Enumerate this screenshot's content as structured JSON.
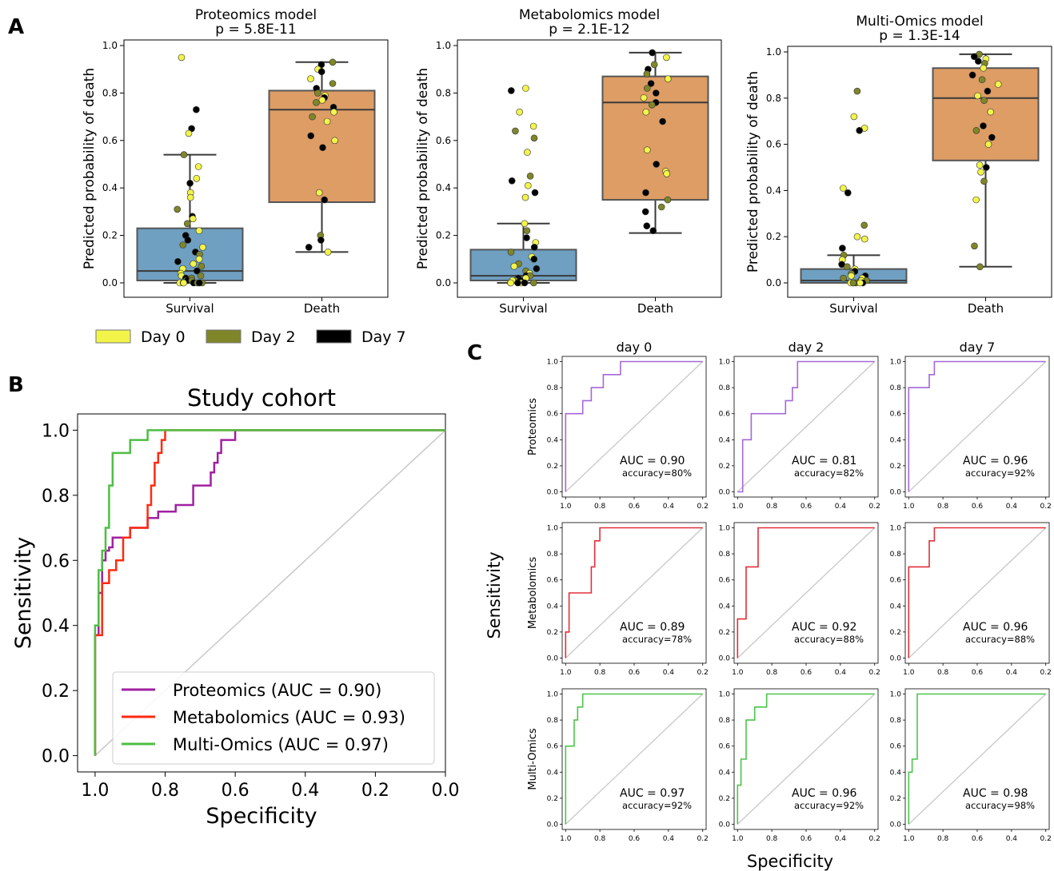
{
  "panel_labels": {
    "a": "A",
    "b": "B",
    "c": "C"
  },
  "legend_days": [
    {
      "label": "Day 0",
      "color": "#f2f44a"
    },
    {
      "label": "Day 2",
      "color": "#7f862a"
    },
    {
      "label": "Day 7",
      "color": "#000000"
    }
  ],
  "colors": {
    "box_survival": "#6f9fc1",
    "box_death": "#dd9d65",
    "proteomics": "#a468d8",
    "metabolomics": "#e0303a",
    "multiomics": "#4cc44a",
    "cohort_proteomics": "#a020a0",
    "cohort_metabolomics": "#ff2a10",
    "cohort_multiomics": "#4dbe43",
    "diagonal": "#c8c8c8"
  },
  "chart_data": [
    {
      "type": "box",
      "panel": "A",
      "title": "Proteomics model",
      "subtitle": "p = 5.8E-11",
      "ylabel": "Predicted probability of death",
      "categories": [
        "Survival",
        "Death"
      ],
      "ylim": [
        0,
        1
      ],
      "yticks": [
        "0.0",
        "0.2",
        "0.4",
        "0.6",
        "0.8",
        "1.0"
      ],
      "boxes": [
        {
          "q1": 0.01,
          "median": 0.05,
          "q3": 0.23,
          "whisker_low": 0.0,
          "whisker_high": 0.54
        },
        {
          "q1": 0.34,
          "median": 0.73,
          "q3": 0.81,
          "whisker_low": 0.13,
          "whisker_high": 0.93
        }
      ],
      "points": [
        [
          0.95,
          0.73,
          0.65,
          0.63,
          0.54,
          0.49,
          0.44,
          0.42,
          0.38,
          0.36,
          0.31,
          0.28,
          0.27,
          0.25,
          0.22,
          0.2,
          0.18,
          0.16,
          0.15,
          0.13,
          0.12,
          0.1,
          0.09,
          0.08,
          0.07,
          0.06,
          0.05,
          0.04,
          0.03,
          0.03,
          0.02,
          0.02,
          0.01,
          0.01,
          0.01,
          0.0,
          0.0,
          0.0,
          0.0,
          0.0,
          0.0,
          0.0
        ],
        [
          0.93,
          0.92,
          0.9,
          0.89,
          0.86,
          0.84,
          0.82,
          0.8,
          0.79,
          0.78,
          0.77,
          0.76,
          0.74,
          0.72,
          0.7,
          0.68,
          0.62,
          0.6,
          0.57,
          0.38,
          0.35,
          0.2,
          0.18,
          0.15,
          0.13
        ]
      ],
      "days": [
        [
          0,
          2,
          2,
          0,
          1,
          0,
          0,
          2,
          0,
          0,
          1,
          2,
          0,
          1,
          0,
          2,
          2,
          1,
          0,
          2,
          1,
          0,
          2,
          0,
          1,
          0,
          2,
          0,
          1,
          0,
          2,
          1,
          0,
          2,
          1,
          0,
          2,
          1,
          2,
          0,
          1,
          2
        ],
        [
          1,
          2,
          0,
          2,
          0,
          1,
          2,
          1,
          0,
          2,
          0,
          1,
          2,
          0,
          1,
          0,
          2,
          0,
          2,
          0,
          2,
          1,
          2,
          2,
          0
        ]
      ]
    },
    {
      "type": "box",
      "panel": "A",
      "title": "Metabolomics model",
      "subtitle": "p = 2.1E-12",
      "ylabel": "Predicted probability of death",
      "categories": [
        "Survival",
        "Death"
      ],
      "ylim": [
        0,
        1
      ],
      "yticks": [
        "0.0",
        "0.2",
        "0.4",
        "0.6",
        "0.8",
        "1.0"
      ],
      "boxes": [
        {
          "q1": 0.01,
          "median": 0.03,
          "q3": 0.14,
          "whisker_low": 0.0,
          "whisker_high": 0.25
        },
        {
          "q1": 0.35,
          "median": 0.76,
          "q3": 0.87,
          "whisker_low": 0.21,
          "whisker_high": 0.97
        }
      ],
      "points": [
        [
          0.82,
          0.81,
          0.72,
          0.66,
          0.64,
          0.61,
          0.55,
          0.45,
          0.43,
          0.41,
          0.38,
          0.36,
          0.25,
          0.22,
          0.19,
          0.17,
          0.15,
          0.13,
          0.11,
          0.1,
          0.08,
          0.07,
          0.06,
          0.05,
          0.04,
          0.03,
          0.03,
          0.02,
          0.02,
          0.01,
          0.01,
          0.01,
          0.0,
          0.0,
          0.0,
          0.0,
          0.0,
          0.0
        ],
        [
          0.97,
          0.95,
          0.92,
          0.9,
          0.88,
          0.86,
          0.84,
          0.82,
          0.8,
          0.78,
          0.76,
          0.75,
          0.72,
          0.68,
          0.56,
          0.5,
          0.47,
          0.46,
          0.38,
          0.35,
          0.32,
          0.3,
          0.24,
          0.22
        ]
      ],
      "days": [
        [
          0,
          2,
          0,
          0,
          1,
          1,
          0,
          1,
          2,
          0,
          2,
          0,
          0,
          1,
          2,
          0,
          2,
          1,
          0,
          2,
          1,
          0,
          2,
          1,
          0,
          2,
          1,
          0,
          2,
          1,
          0,
          2,
          1,
          0,
          2,
          1,
          0,
          2
        ],
        [
          2,
          0,
          1,
          2,
          1,
          0,
          2,
          1,
          2,
          0,
          2,
          1,
          0,
          2,
          0,
          2,
          0,
          0,
          2,
          1,
          1,
          2,
          2,
          2
        ]
      ]
    },
    {
      "type": "box",
      "panel": "A",
      "title": "Multi-Omics model",
      "subtitle": "p = 1.3E-14",
      "ylabel": "Predicted probability of death",
      "categories": [
        "Survival",
        "Death"
      ],
      "ylim": [
        0,
        1
      ],
      "yticks": [
        "0.0",
        "0.2",
        "0.4",
        "0.6",
        "0.8",
        "1.0"
      ],
      "boxes": [
        {
          "q1": 0.0,
          "median": 0.01,
          "q3": 0.06,
          "whisker_low": 0.0,
          "whisker_high": 0.12
        },
        {
          "q1": 0.53,
          "median": 0.8,
          "q3": 0.93,
          "whisker_low": 0.07,
          "whisker_high": 0.99
        }
      ],
      "points": [
        [
          0.83,
          0.72,
          0.67,
          0.66,
          0.41,
          0.39,
          0.25,
          0.2,
          0.19,
          0.15,
          0.12,
          0.1,
          0.08,
          0.07,
          0.06,
          0.05,
          0.04,
          0.03,
          0.03,
          0.02,
          0.02,
          0.01,
          0.01,
          0.01,
          0.0,
          0.0,
          0.0,
          0.0,
          0.0,
          0.0
        ],
        [
          0.99,
          0.98,
          0.97,
          0.96,
          0.95,
          0.93,
          0.9,
          0.88,
          0.86,
          0.83,
          0.81,
          0.79,
          0.74,
          0.68,
          0.66,
          0.63,
          0.6,
          0.51,
          0.5,
          0.48,
          0.44,
          0.36,
          0.16,
          0.07
        ]
      ],
      "days": [
        [
          1,
          0,
          0,
          2,
          0,
          2,
          1,
          0,
          0,
          2,
          1,
          0,
          2,
          1,
          0,
          2,
          1,
          0,
          2,
          1,
          0,
          2,
          1,
          0,
          2,
          1,
          0,
          2,
          1,
          0
        ],
        [
          1,
          2,
          0,
          2,
          1,
          0,
          2,
          1,
          0,
          2,
          0,
          1,
          0,
          2,
          1,
          2,
          0,
          0,
          2,
          0,
          1,
          0,
          1,
          1
        ]
      ]
    },
    {
      "type": "line",
      "panel": "B",
      "title": "Study cohort",
      "xlabel": "Specificity",
      "ylabel": "Sensitivity",
      "xlim": [
        1.05,
        0.0
      ],
      "ylim": [
        -0.05,
        1.05
      ],
      "xticks": [
        "1.0",
        "0.8",
        "0.6",
        "0.4",
        "0.2",
        "0.0"
      ],
      "yticks": [
        "0.0",
        "0.2",
        "0.4",
        "0.6",
        "0.8",
        "1.0"
      ],
      "legend_position": "lower-right",
      "series": [
        {
          "name": "Proteomics (AUC = 0.90)",
          "color_key": "cohort_proteomics",
          "x": [
            1.0,
            1.0,
            0.99,
            0.99,
            0.98,
            0.98,
            0.97,
            0.97,
            0.96,
            0.96,
            0.95,
            0.95,
            0.9,
            0.9,
            0.85,
            0.85,
            0.82,
            0.82,
            0.77,
            0.77,
            0.72,
            0.72,
            0.67,
            0.67,
            0.66,
            0.66,
            0.65,
            0.65,
            0.64,
            0.64,
            0.62,
            0.62,
            0.6,
            0.6,
            0.0
          ],
          "y": [
            0.0,
            0.37,
            0.37,
            0.5,
            0.5,
            0.6,
            0.6,
            0.63,
            0.63,
            0.64,
            0.64,
            0.67,
            0.67,
            0.7,
            0.7,
            0.73,
            0.73,
            0.75,
            0.75,
            0.77,
            0.77,
            0.83,
            0.83,
            0.87,
            0.87,
            0.9,
            0.9,
            0.93,
            0.93,
            0.97,
            0.97,
            0.97,
            0.97,
            1.0,
            1.0
          ]
        },
        {
          "name": "Metabolomics (AUC = 0.93)",
          "color_key": "cohort_metabolomics",
          "x": [
            1.0,
            1.0,
            0.98,
            0.98,
            0.96,
            0.96,
            0.94,
            0.94,
            0.92,
            0.92,
            0.9,
            0.9,
            0.85,
            0.85,
            0.84,
            0.84,
            0.83,
            0.83,
            0.82,
            0.82,
            0.81,
            0.81,
            0.8,
            0.8,
            0.0
          ],
          "y": [
            0.0,
            0.37,
            0.37,
            0.53,
            0.53,
            0.57,
            0.57,
            0.6,
            0.6,
            0.67,
            0.67,
            0.7,
            0.7,
            0.77,
            0.77,
            0.83,
            0.83,
            0.9,
            0.9,
            0.93,
            0.93,
            0.97,
            0.97,
            1.0,
            1.0
          ]
        },
        {
          "name": "Multi-Omics (AUC = 0.97)",
          "color_key": "cohort_multiomics",
          "x": [
            1.0,
            1.0,
            0.99,
            0.99,
            0.98,
            0.98,
            0.97,
            0.97,
            0.96,
            0.96,
            0.95,
            0.95,
            0.9,
            0.9,
            0.85,
            0.85,
            0.8,
            0.8,
            0.0
          ],
          "y": [
            0.0,
            0.4,
            0.4,
            0.57,
            0.57,
            0.63,
            0.63,
            0.7,
            0.7,
            0.83,
            0.83,
            0.93,
            0.93,
            0.97,
            0.97,
            1.0,
            1.0,
            1.0,
            1.0
          ]
        },
        {
          "name": "",
          "color_key": "diagonal",
          "x": [
            1.0,
            0.0
          ],
          "y": [
            0.0,
            1.0
          ]
        }
      ]
    },
    {
      "type": "line",
      "panel": "C",
      "layout": "grid-3x3",
      "column_titles": [
        "day 0",
        "day 2",
        "day 7"
      ],
      "row_labels": [
        "Proteomics",
        "Metabolomics",
        "Multi-Omics"
      ],
      "row_color_keys": [
        "proteomics",
        "metabolomics",
        "multiomics"
      ],
      "xlabel": "Specificity",
      "ylabel": "Sensitivity",
      "xlim": [
        1.02,
        0.18
      ],
      "ylim": [
        -0.04,
        1.04
      ],
      "xticks": [
        "1.0",
        "0.8",
        "0.6",
        "0.4",
        "0.2"
      ],
      "yticks": [
        "0.0",
        "0.2",
        "0.4",
        "0.6",
        "0.8",
        "1.0"
      ],
      "cells": [
        {
          "auc": "AUC = 0.90",
          "accuracy": "accuracy=80%",
          "x": [
            1.0,
            1.0,
            0.98,
            0.98,
            0.9,
            0.9,
            0.85,
            0.85,
            0.8,
            0.8,
            0.78,
            0.78,
            0.68,
            0.68,
            0.2
          ],
          "y": [
            0.0,
            0.6,
            0.6,
            0.6,
            0.6,
            0.7,
            0.7,
            0.8,
            0.8,
            0.8,
            0.8,
            0.9,
            0.9,
            1.0,
            1.0
          ]
        },
        {
          "auc": "AUC = 0.81",
          "accuracy": "accuracy=82%",
          "x": [
            1.0,
            0.97,
            0.97,
            0.92,
            0.92,
            0.85,
            0.85,
            0.72,
            0.72,
            0.68,
            0.68,
            0.65,
            0.65,
            0.2
          ],
          "y": [
            0.0,
            0.0,
            0.4,
            0.4,
            0.6,
            0.6,
            0.6,
            0.6,
            0.7,
            0.7,
            0.8,
            0.8,
            1.0,
            1.0
          ]
        },
        {
          "auc": "AUC = 0.96",
          "accuracy": "accuracy=92%",
          "x": [
            1.0,
            1.0,
            0.88,
            0.88,
            0.85,
            0.85,
            0.2
          ],
          "y": [
            0.0,
            0.8,
            0.8,
            0.9,
            0.9,
            1.0,
            1.0
          ]
        },
        {
          "auc": "AUC = 0.89",
          "accuracy": "accuracy=78%",
          "x": [
            1.0,
            1.0,
            0.98,
            0.98,
            0.85,
            0.85,
            0.83,
            0.83,
            0.8,
            0.8,
            0.2
          ],
          "y": [
            0.0,
            0.2,
            0.2,
            0.5,
            0.5,
            0.7,
            0.7,
            0.9,
            0.9,
            1.0,
            1.0
          ]
        },
        {
          "auc": "AUC = 0.92",
          "accuracy": "accuracy=88%",
          "x": [
            1.0,
            1.0,
            0.95,
            0.95,
            0.88,
            0.88,
            0.2
          ],
          "y": [
            0.0,
            0.3,
            0.3,
            0.7,
            0.7,
            1.0,
            1.0
          ]
        },
        {
          "auc": "AUC = 0.96",
          "accuracy": "accuracy=88%",
          "x": [
            1.0,
            1.0,
            0.9,
            0.9,
            0.88,
            0.88,
            0.85,
            0.85,
            0.2
          ],
          "y": [
            0.0,
            0.7,
            0.7,
            0.7,
            0.7,
            0.9,
            0.9,
            1.0,
            1.0
          ]
        },
        {
          "auc": "AUC = 0.97",
          "accuracy": "accuracy=92%",
          "x": [
            1.0,
            1.0,
            0.95,
            0.95,
            0.93,
            0.93,
            0.9,
            0.9,
            0.2
          ],
          "y": [
            0.0,
            0.6,
            0.6,
            0.8,
            0.8,
            0.9,
            0.9,
            1.0,
            1.0
          ]
        },
        {
          "auc": "AUC = 0.96",
          "accuracy": "accuracy=92%",
          "x": [
            1.0,
            1.0,
            0.98,
            0.98,
            0.95,
            0.95,
            0.9,
            0.9,
            0.83,
            0.83,
            0.2
          ],
          "y": [
            0.0,
            0.3,
            0.3,
            0.5,
            0.5,
            0.8,
            0.8,
            0.9,
            0.9,
            1.0,
            1.0
          ]
        },
        {
          "auc": "AUC = 0.98",
          "accuracy": "accuracy=98%",
          "x": [
            1.0,
            1.0,
            0.98,
            0.98,
            0.95,
            0.95,
            0.2
          ],
          "y": [
            0.0,
            0.4,
            0.4,
            0.5,
            0.5,
            1.0,
            1.0
          ]
        }
      ]
    }
  ]
}
